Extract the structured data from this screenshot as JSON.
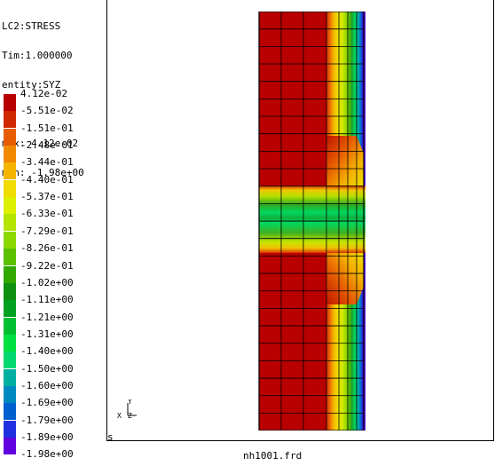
{
  "header": {
    "line1": "LC2:STRESS",
    "line2": "Tim:1.000000",
    "line3": "entity:SYZ",
    "max_text": "max: 4.12e-02",
    "min_text": "min: -1.98e+00"
  },
  "legend": {
    "top_label": "4.12e-02",
    "labels": [
      "-5.51e-02",
      "-1.51e-01",
      "-2.48e-01",
      "-3.44e-01",
      "-4.40e-01",
      "-5.37e-01",
      "-6.33e-01",
      "-7.29e-01",
      "-8.26e-01",
      "-9.22e-01",
      "-1.02e+00",
      "-1.11e+00",
      "-1.21e+00",
      "-1.31e+00",
      "-1.40e+00",
      "-1.50e+00",
      "-1.60e+00",
      "-1.69e+00",
      "-1.79e+00",
      "-1.89e+00",
      "-1.98e+00"
    ],
    "colors": [
      "#b80000",
      "#d02800",
      "#e65c00",
      "#f08800",
      "#f4b400",
      "#f0dc00",
      "#dcf000",
      "#b4e400",
      "#8cd800",
      "#5ac000",
      "#32a800",
      "#109010",
      "#00a020",
      "#00c030",
      "#00e040",
      "#00d870",
      "#00b0a0",
      "#0088c0",
      "#0060d0",
      "#2030e0",
      "#6000e0"
    ]
  },
  "viewport": {
    "status_letter": "s",
    "axis_x": "X",
    "axis_y": "Y",
    "axis_z": "Z",
    "filename": "nh1001.frd"
  }
}
